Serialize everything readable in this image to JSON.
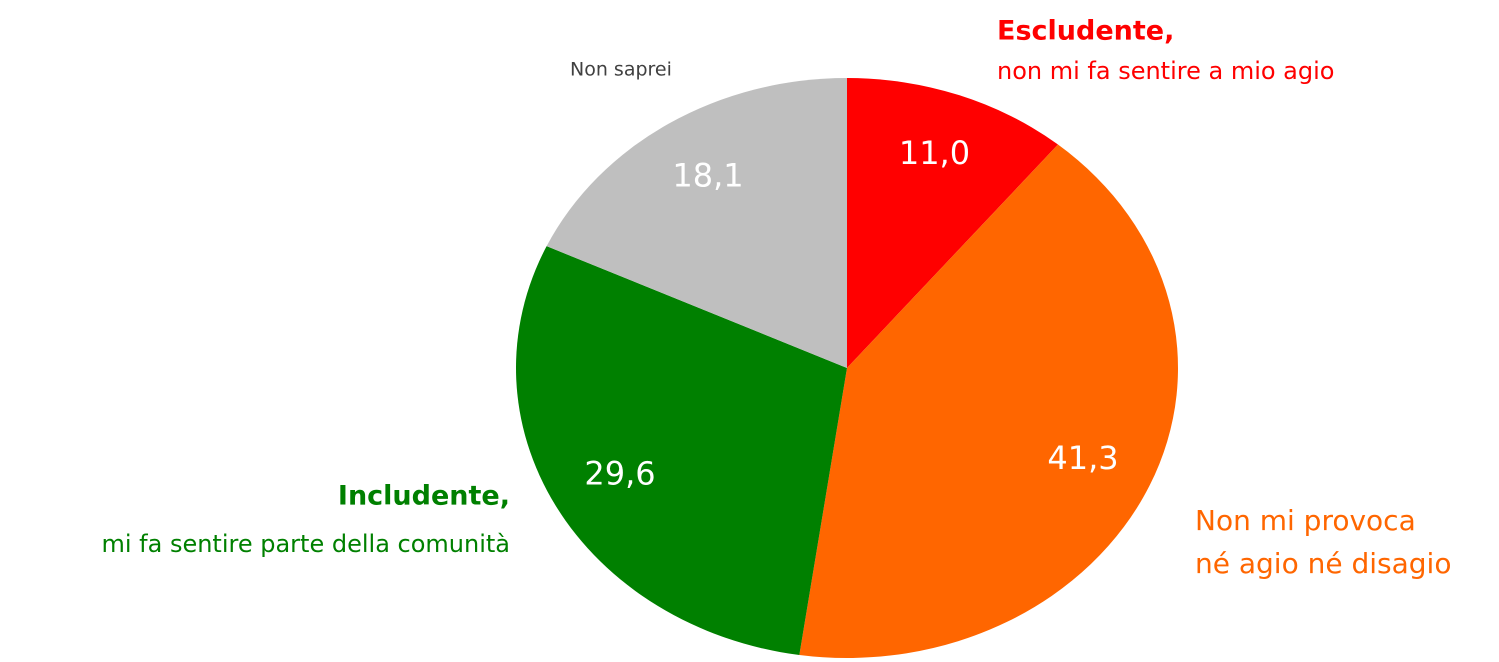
{
  "chart_data": {
    "type": "pie",
    "categories": [
      [
        "Escludente,",
        "non mi fa sentire a mio agio"
      ],
      [
        "Non mi provoca",
        "né agio né disagio"
      ],
      [
        "Includente,",
        "mi fa sentire parte della comunità"
      ],
      [
        "Non saprei"
      ]
    ],
    "values": [
      11.0,
      41.3,
      29.6,
      18.1
    ],
    "value_labels": [
      "11,0",
      "41,3",
      "29,6",
      "18,1"
    ],
    "colors": [
      "#ff0000",
      "#ff6600",
      "#008000",
      "#bfbfbf"
    ],
    "label_colors": [
      "#ff0000",
      "#ff6600",
      "#008000",
      "#404040"
    ],
    "bold_first_line": [
      true,
      false,
      true,
      false
    ]
  }
}
